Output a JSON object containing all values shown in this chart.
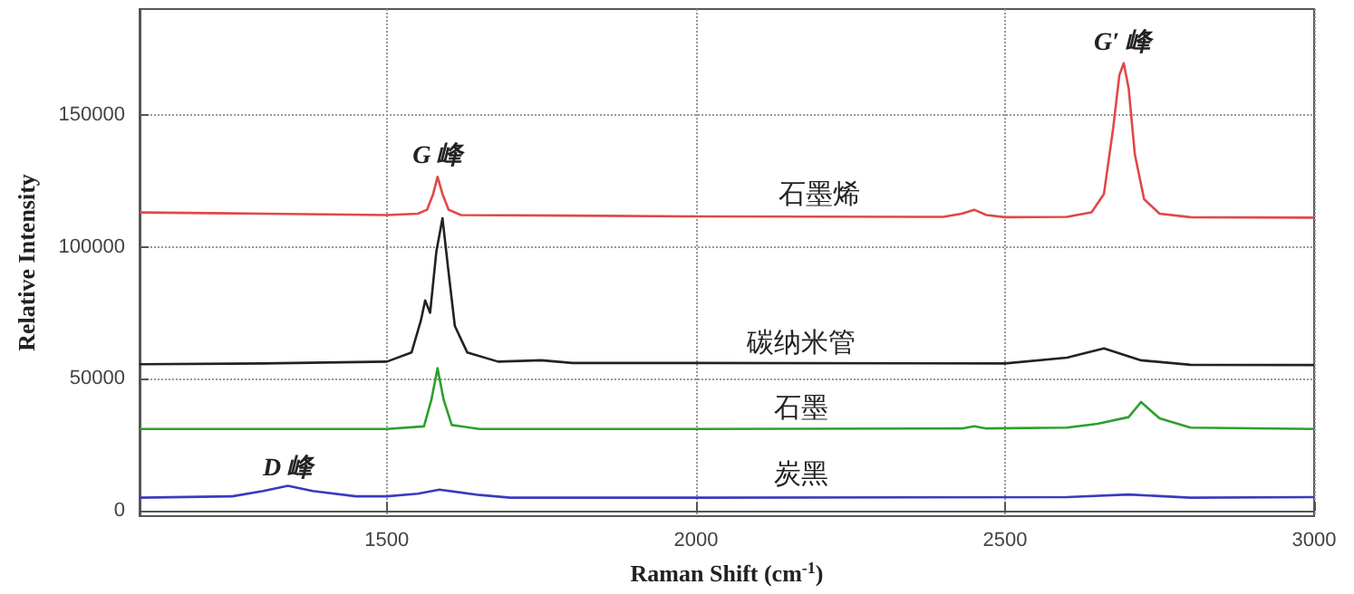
{
  "chart_data": {
    "type": "line",
    "xlabel": "Raman Shift (cm$^{-1}$)",
    "ylabel": "Relative Intensity",
    "xlim": [
      1100,
      3000
    ],
    "xticks": [
      1500,
      2000,
      2500,
      3000
    ],
    "ylim": [
      -2000,
      190000
    ],
    "yticks": [
      0,
      50000,
      100000,
      150000
    ],
    "grid": true,
    "legend": false,
    "marker": "none",
    "line_style": "solid",
    "series": [
      {
        "name": "石墨烯",
        "color": "#e04848",
        "x": [
          1100,
          1300,
          1500,
          1550,
          1565,
          1575,
          1582,
          1590,
          1600,
          1620,
          1800,
          2000,
          2400,
          2430,
          2450,
          2470,
          2500,
          2600,
          2640,
          2660,
          2675,
          2685,
          2692,
          2700,
          2710,
          2725,
          2750,
          2800,
          3000
        ],
        "values": [
          113000,
          112500,
          112000,
          112500,
          114000,
          120000,
          126500,
          120000,
          114000,
          112000,
          111800,
          111500,
          111300,
          112500,
          114000,
          112000,
          111200,
          111300,
          113000,
          120000,
          145000,
          165000,
          169500,
          160000,
          135000,
          118000,
          112500,
          111200,
          111000
        ]
      },
      {
        "name": "碳纳米管",
        "color": "#222222",
        "x": [
          1100,
          1300,
          1500,
          1540,
          1555,
          1562,
          1570,
          1580,
          1590,
          1600,
          1610,
          1630,
          1680,
          1750,
          1800,
          2000,
          2500,
          2600,
          2660,
          2720,
          2800,
          3000
        ],
        "values": [
          55500,
          55800,
          56500,
          60000,
          72000,
          79700,
          75000,
          98000,
          110800,
          90000,
          70000,
          60000,
          56500,
          57000,
          56000,
          56000,
          55800,
          58000,
          61500,
          57000,
          55300,
          55200
        ]
      },
      {
        "name": "石墨",
        "color": "#2ca02c",
        "x": [
          1100,
          1500,
          1560,
          1572,
          1582,
          1592,
          1605,
          1650,
          2000,
          2430,
          2450,
          2470,
          2600,
          2650,
          2700,
          2720,
          2750,
          2800,
          3000
        ],
        "values": [
          31000,
          31000,
          32000,
          42000,
          54000,
          42000,
          32500,
          31000,
          31000,
          31200,
          32000,
          31200,
          31500,
          33000,
          35500,
          41200,
          35000,
          31500,
          31000
        ]
      },
      {
        "name": "炭黑",
        "color": "#3a3ac0",
        "x": [
          1100,
          1250,
          1300,
          1340,
          1380,
          1450,
          1500,
          1550,
          1585,
          1650,
          1700,
          2000,
          2600,
          2700,
          2800,
          3000
        ],
        "values": [
          5000,
          5500,
          7500,
          9500,
          7500,
          5500,
          5500,
          6500,
          8000,
          6000,
          5000,
          5000,
          5200,
          6200,
          5000,
          5200
        ]
      }
    ],
    "annotations": [
      "G 峰",
      "G′ 峰",
      "D 峰"
    ]
  }
}
